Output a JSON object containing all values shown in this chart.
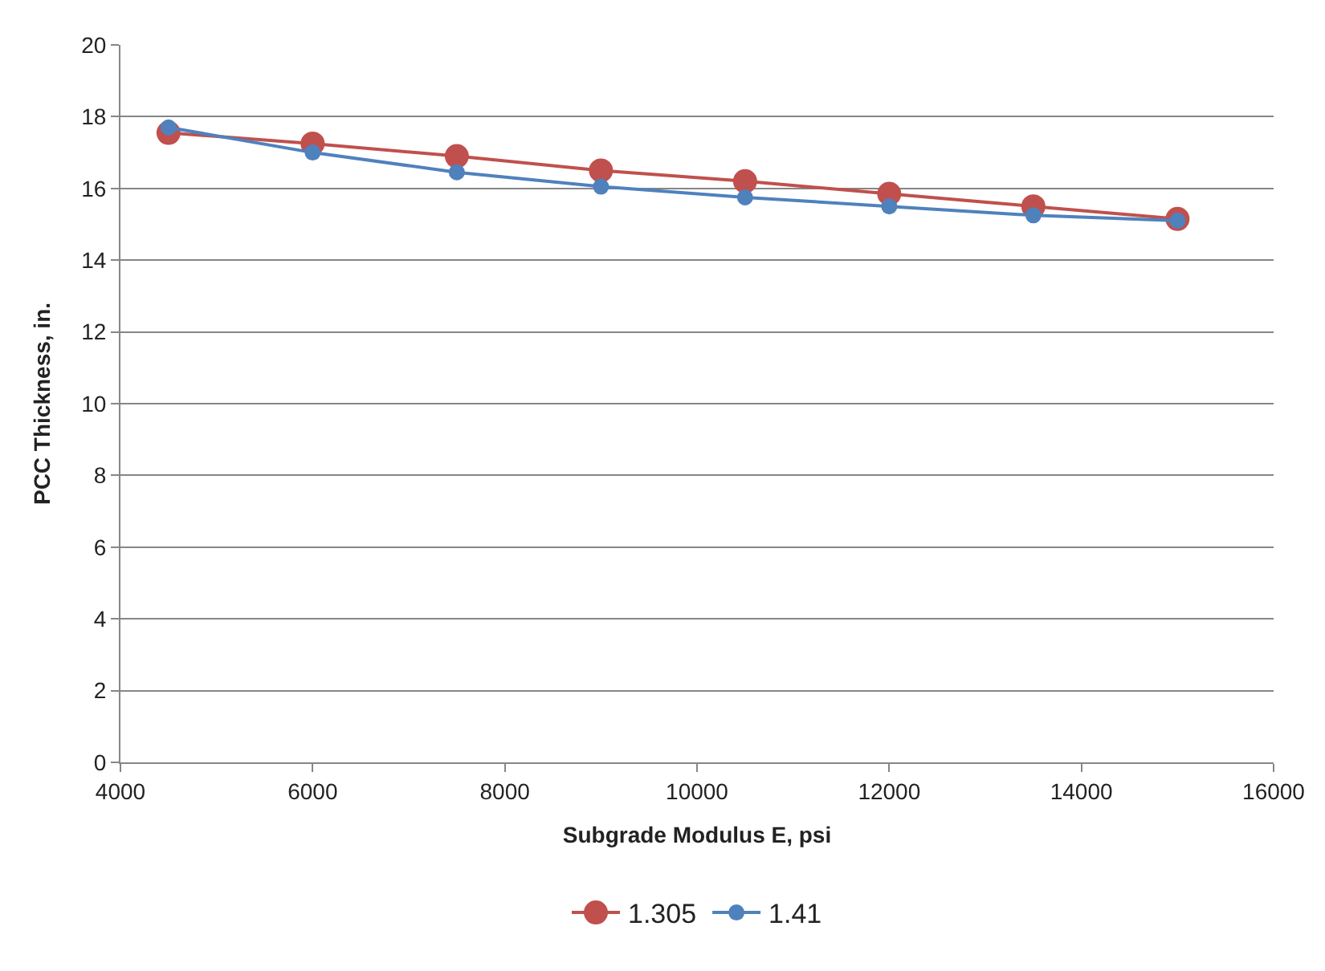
{
  "chart_data": {
    "type": "line",
    "xlabel": "Subgrade Modulus E, psi",
    "ylabel": "PCC Thickness, in.",
    "x": [
      4500,
      6000,
      7500,
      9000,
      10500,
      12000,
      13500,
      15000
    ],
    "series": [
      {
        "name": "1.305",
        "color": "#c0504d",
        "values": [
          17.55,
          17.25,
          16.9,
          16.5,
          16.2,
          15.85,
          15.5,
          15.15
        ]
      },
      {
        "name": "1.41",
        "color": "#4f81bd",
        "values": [
          17.7,
          17.0,
          16.45,
          16.05,
          15.75,
          15.5,
          15.25,
          15.1
        ]
      }
    ],
    "xlim": [
      4000,
      16000
    ],
    "xticks": [
      4000,
      6000,
      8000,
      10000,
      12000,
      14000,
      16000
    ],
    "ylim": [
      0,
      20
    ],
    "yticks": [
      0,
      2,
      4,
      6,
      8,
      10,
      12,
      14,
      16,
      18,
      20
    ],
    "grid": "y",
    "legend": "bottom",
    "marker": "circle",
    "line_style": "solid"
  }
}
